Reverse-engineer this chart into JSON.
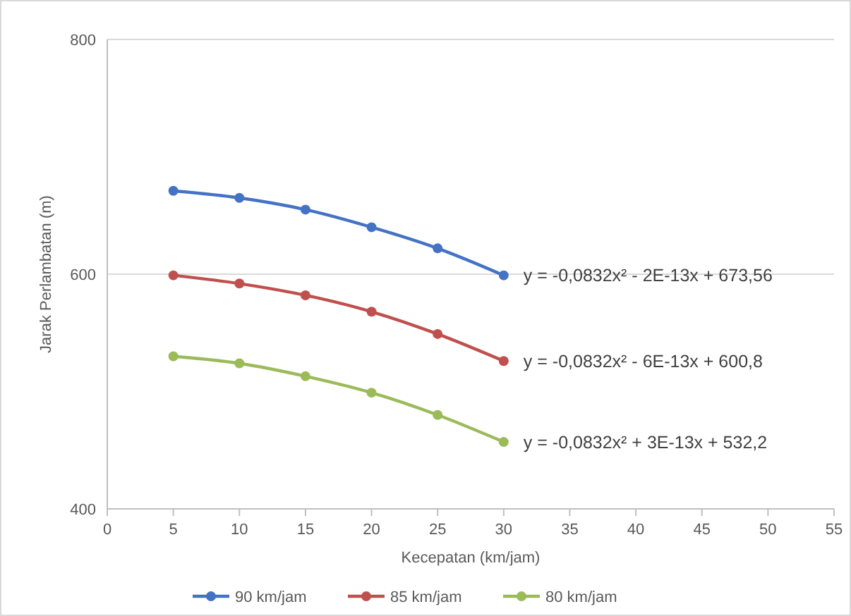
{
  "chart_data": {
    "type": "line",
    "xlabel": "Kecepatan (km/jam)",
    "ylabel": "Jarak Perlambatan (m)",
    "x": [
      5,
      10,
      15,
      20,
      25,
      30
    ],
    "series": [
      {
        "name": "90 km/jam",
        "color": "#4472c4",
        "values": [
          671,
          665,
          655,
          640,
          622,
          599
        ]
      },
      {
        "name": "85 km/jam",
        "color": "#c0504d",
        "values": [
          599,
          592,
          582,
          568,
          549,
          526
        ]
      },
      {
        "name": "80 km/jam",
        "color": "#9bbb59",
        "values": [
          530,
          524,
          513,
          499,
          480,
          457
        ]
      }
    ],
    "xlim": [
      0,
      55
    ],
    "xticks": [
      0,
      5,
      10,
      15,
      20,
      25,
      30,
      35,
      40,
      45,
      50,
      55
    ],
    "ylim": [
      400,
      800
    ],
    "yticks": [
      400,
      600,
      800
    ],
    "grid": "y",
    "legend": "bottom",
    "marker": "circle",
    "line_style": "solid",
    "annotations": [
      "y = -0,0832x² - 2E-13x + 673,56",
      "y = -0,0832x² - 6E-13x + 600,8",
      "y = -0,0832x² + 3E-13x + 532,2"
    ]
  }
}
